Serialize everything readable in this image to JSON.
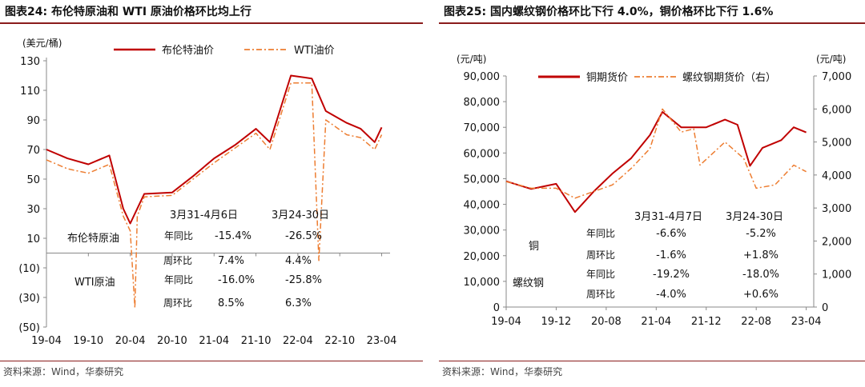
{
  "panels": [
    {
      "title": "图表24:  布伦特原油和 WTI 原油价格环比均上行",
      "source": "资料来源：Wind，华泰研究"
    },
    {
      "title": "图表25:  国内螺纹钢价格环比下行 4.0%，铜价格环比下行 1.6%",
      "source": "资料来源：Wind，华泰研究"
    }
  ],
  "chart_data": [
    {
      "type": "line",
      "unit_left": "(美元/桶)",
      "x_ticks": [
        "19-04",
        "19-10",
        "20-04",
        "20-10",
        "21-04",
        "21-10",
        "22-04",
        "22-10",
        "23-04"
      ],
      "y_ticks": [
        "130",
        "110",
        "90",
        "70",
        "50",
        "30",
        "10",
        "(10)",
        "(30)",
        "(50)"
      ],
      "ylim": [
        -50,
        130
      ],
      "legend_position": "top-center",
      "series": [
        {
          "name": "布伦特油价",
          "color": "#c00000",
          "style": "solid",
          "x": [
            "2019-04",
            "2019-07",
            "2019-10",
            "2020-01",
            "2020-03",
            "2020-04",
            "2020-06",
            "2020-10",
            "2021-01",
            "2021-04",
            "2021-07",
            "2021-10",
            "2021-12",
            "2022-03",
            "2022-06",
            "2022-08",
            "2022-11",
            "2023-01",
            "2023-03",
            "2023-04"
          ],
          "y": [
            70,
            64,
            60,
            66,
            30,
            20,
            40,
            41,
            52,
            64,
            73,
            84,
            75,
            120,
            118,
            96,
            88,
            84,
            75,
            85
          ]
        },
        {
          "name": "WTI油价",
          "color": "#ed7d31",
          "style": "dashdot",
          "x": [
            "2019-04",
            "2019-07",
            "2019-10",
            "2020-01",
            "2020-03",
            "2020-04",
            "2020-04-21",
            "2020-05",
            "2020-06",
            "2020-10",
            "2021-01",
            "2021-04",
            "2021-07",
            "2021-10",
            "2021-12",
            "2022-03",
            "2022-06",
            "2022-07",
            "2022-08",
            "2022-11",
            "2023-01",
            "2023-03",
            "2023-04"
          ],
          "y": [
            63,
            57,
            54,
            60,
            25,
            15,
            -37,
            25,
            38,
            39,
            50,
            61,
            71,
            81,
            70,
            115,
            115,
            -5,
            90,
            80,
            78,
            70,
            80
          ]
        }
      ],
      "table": {
        "col_headers": [
          "3月31-4月6日",
          "3月24-30日"
        ],
        "groups": [
          {
            "name": "布伦特原油",
            "rows": [
              {
                "label": "年同比",
                "values": [
                  "-15.4%",
                  "-26.5%"
                ]
              },
              {
                "label": "周环比",
                "values": [
                  "7.4%",
                  "4.4%"
                ]
              }
            ]
          },
          {
            "name": "WTI原油",
            "rows": [
              {
                "label": "年同比",
                "values": [
                  "-16.0%",
                  "-25.8%"
                ]
              },
              {
                "label": "周环比",
                "values": [
                  "8.5%",
                  "6.3%"
                ]
              }
            ]
          }
        ]
      }
    },
    {
      "type": "line",
      "unit_left": "(元/吨)",
      "unit_right": "(元/吨)",
      "x_ticks": [
        "19-04",
        "19-12",
        "20-08",
        "21-04",
        "21-12",
        "22-08",
        "23-04"
      ],
      "y_ticks_left": [
        "90,000",
        "80,000",
        "70,000",
        "60,000",
        "50,000",
        "40,000",
        "30,000",
        "20,000",
        "10,000",
        "0"
      ],
      "y_ticks_right": [
        "7,000",
        "6,000",
        "5,000",
        "4,000",
        "3,000",
        "2,000",
        "1,000",
        "0"
      ],
      "ylim_left": [
        0,
        90000
      ],
      "ylim_right": [
        0,
        7000
      ],
      "legend_position": "top-center",
      "series": [
        {
          "name": "铜期货价",
          "axis": "left",
          "color": "#c00000",
          "style": "solid",
          "x": [
            "2019-04",
            "2019-08",
            "2019-12",
            "2020-03",
            "2020-06",
            "2020-09",
            "2020-12",
            "2021-03",
            "2021-05",
            "2021-08",
            "2021-12",
            "2022-03",
            "2022-05",
            "2022-07",
            "2022-09",
            "2022-12",
            "2023-02",
            "2023-04"
          ],
          "y": [
            49000,
            46000,
            48000,
            37000,
            45000,
            52000,
            58000,
            67000,
            76000,
            70000,
            70000,
            73000,
            71000,
            55000,
            62000,
            65000,
            70000,
            68000
          ]
        },
        {
          "name": "螺纹钢期货价（右）",
          "axis": "right",
          "color": "#ed7d31",
          "style": "dashdot",
          "x": [
            "2019-04",
            "2019-08",
            "2019-12",
            "2020-03",
            "2020-06",
            "2020-09",
            "2020-12",
            "2021-03",
            "2021-05",
            "2021-08",
            "2021-10",
            "2021-11",
            "2022-03",
            "2022-06",
            "2022-08",
            "2022-11",
            "2023-02",
            "2023-04"
          ],
          "y": [
            3800,
            3600,
            3600,
            3300,
            3500,
            3700,
            4200,
            4800,
            6000,
            5300,
            5400,
            4300,
            5000,
            4500,
            3600,
            3700,
            4300,
            4100
          ]
        }
      ],
      "table": {
        "col_headers": [
          "3月31-4月7日",
          "3月24-30日"
        ],
        "groups": [
          {
            "name": "铜",
            "rows": [
              {
                "label": "年同比",
                "values": [
                  "-6.6%",
                  "-5.2%"
                ]
              },
              {
                "label": "周环比",
                "values": [
                  "-1.6%",
                  "+1.8%"
                ]
              }
            ]
          },
          {
            "name": "螺纹钢",
            "rows": [
              {
                "label": "年同比",
                "values": [
                  "-19.2%",
                  "-18.0%"
                ]
              },
              {
                "label": "周环比",
                "values": [
                  "-4.0%",
                  "+0.6%"
                ]
              }
            ]
          }
        ]
      }
    }
  ]
}
